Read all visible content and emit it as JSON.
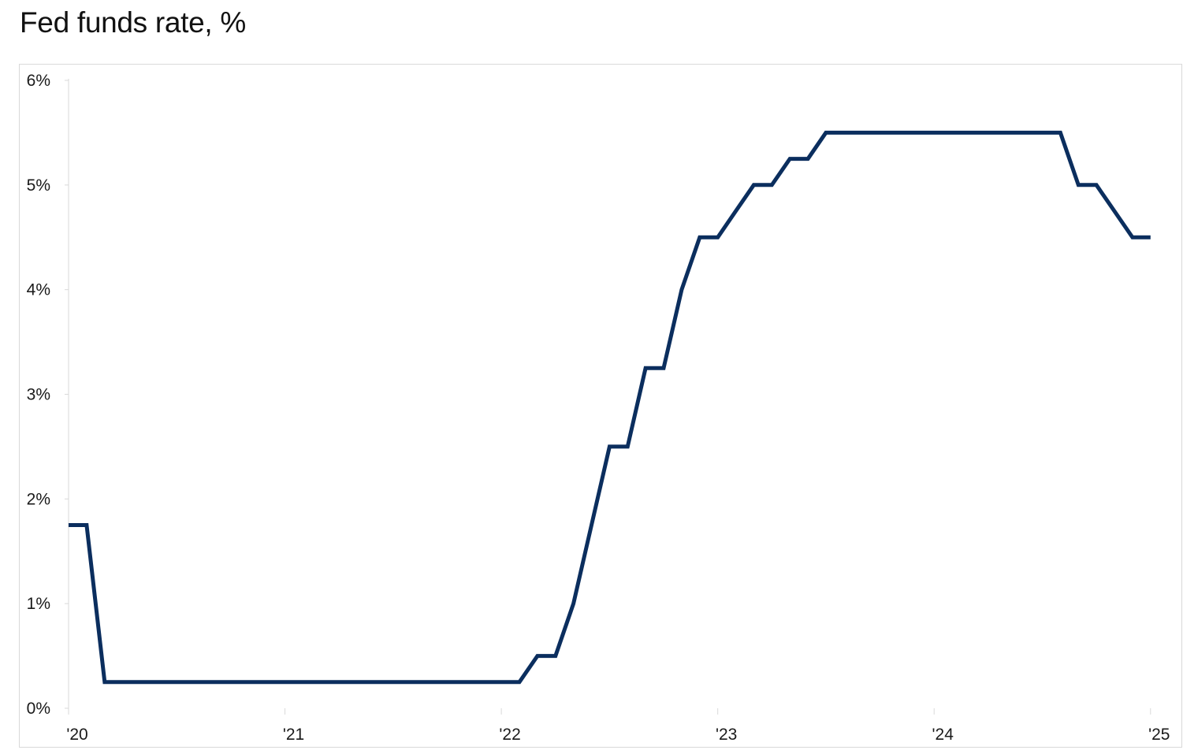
{
  "chart_data": {
    "type": "line",
    "title": "Fed funds rate, %",
    "xlabel": "",
    "ylabel": "",
    "x_tick_labels": [
      "'20",
      "'21",
      "'22",
      "'23",
      "'24",
      "'25"
    ],
    "x_tick_values": [
      2020,
      2021,
      2022,
      2023,
      2024,
      2025
    ],
    "y_tick_labels": [
      "0%",
      "1%",
      "2%",
      "3%",
      "4%",
      "5%",
      "6%"
    ],
    "y_tick_values": [
      0,
      1,
      2,
      3,
      4,
      5,
      6
    ],
    "xlim": [
      2020,
      2025.07
    ],
    "ylim": [
      0,
      6
    ],
    "grid": false,
    "legend": "none",
    "colors": {
      "series": "#0b2e5e",
      "axis": "#d9d9d9",
      "frame": "#d9d9d9"
    },
    "series": [
      {
        "x": [
          "2020-01",
          "2020-02",
          "2020-03",
          "2020-04",
          "2020-05",
          "2020-06",
          "2020-07",
          "2020-08",
          "2020-09",
          "2020-10",
          "2020-11",
          "2020-12",
          "2021-01",
          "2021-02",
          "2021-03",
          "2021-04",
          "2021-05",
          "2021-06",
          "2021-07",
          "2021-08",
          "2021-09",
          "2021-10",
          "2021-11",
          "2021-12",
          "2022-01",
          "2022-02",
          "2022-03",
          "2022-04",
          "2022-05",
          "2022-06",
          "2022-07",
          "2022-08",
          "2022-09",
          "2022-10",
          "2022-11",
          "2022-12",
          "2023-01",
          "2023-02",
          "2023-03",
          "2023-04",
          "2023-05",
          "2023-06",
          "2023-07",
          "2023-08",
          "2023-09",
          "2023-10",
          "2023-11",
          "2023-12",
          "2024-01",
          "2024-02",
          "2024-03",
          "2024-04",
          "2024-05",
          "2024-06",
          "2024-07",
          "2024-08",
          "2024-09",
          "2024-10",
          "2024-11",
          "2024-12",
          "2025-01"
        ],
        "values": [
          1.75,
          1.75,
          0.25,
          0.25,
          0.25,
          0.25,
          0.25,
          0.25,
          0.25,
          0.25,
          0.25,
          0.25,
          0.25,
          0.25,
          0.25,
          0.25,
          0.25,
          0.25,
          0.25,
          0.25,
          0.25,
          0.25,
          0.25,
          0.25,
          0.25,
          0.25,
          0.5,
          0.5,
          1.0,
          1.75,
          2.5,
          2.5,
          3.25,
          3.25,
          4.0,
          4.5,
          4.5,
          4.75,
          5.0,
          5.0,
          5.25,
          5.25,
          5.5,
          5.5,
          5.5,
          5.5,
          5.5,
          5.5,
          5.5,
          5.5,
          5.5,
          5.5,
          5.5,
          5.5,
          5.5,
          5.5,
          5.0,
          5.0,
          4.75,
          4.5,
          4.5
        ]
      }
    ]
  }
}
